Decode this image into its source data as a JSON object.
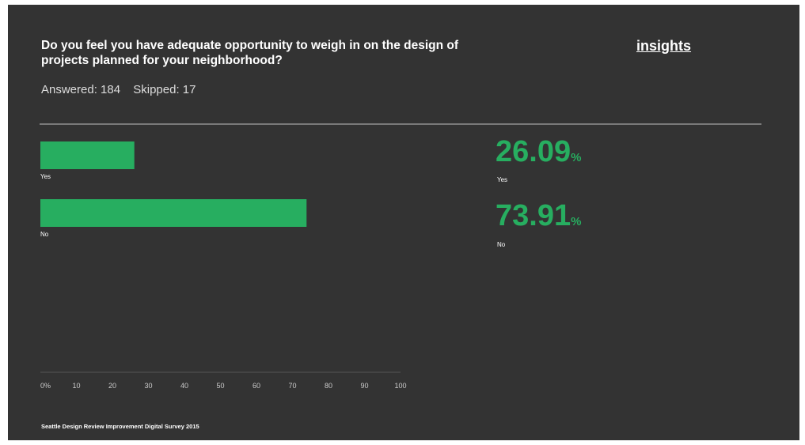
{
  "question": "Do you feel you have adequate opportunity to weigh in on the design of projects planned for your neighborhood?",
  "insights_link": "insights",
  "stats": {
    "answered": "Answered: 184",
    "skipped": "Skipped: 17"
  },
  "footer": "Seattle Design Review Improvement Digital Survey 2015",
  "percent_symbol": "%",
  "colors": {
    "background": "#333333",
    "bar": "#27ae60"
  },
  "chart_data": {
    "type": "bar",
    "orientation": "horizontal",
    "categories": [
      "Yes",
      "No"
    ],
    "values": [
      26.09,
      73.91
    ],
    "value_labels": [
      "26.09",
      "73.91"
    ],
    "xlim": [
      0,
      100
    ],
    "ticks": [
      "0%",
      "10",
      "20",
      "30",
      "40",
      "50",
      "60",
      "70",
      "80",
      "90",
      "100"
    ],
    "grid": false
  }
}
